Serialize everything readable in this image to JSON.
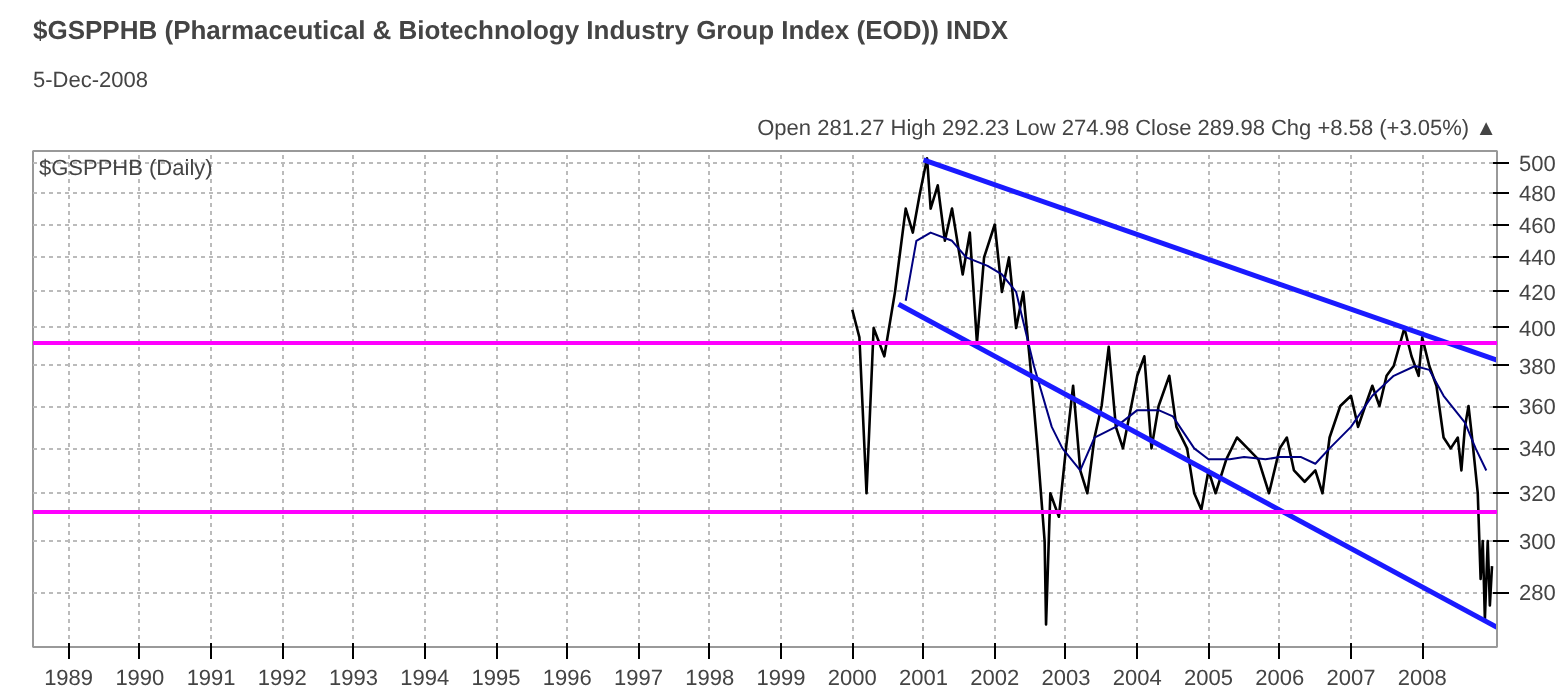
{
  "chart_data": {
    "type": "line",
    "title": "$GSPPHB (Pharmaceutical & Biotechnology Industry Group Index (EOD)) INDX",
    "subtitle": "5-Dec-2008",
    "annotations": [
      "Open 281.27 High 292.23 Low 274.98 Close 289.98 Chg +8.58 (+3.05%) ▲",
      "$GSPPHB (Daily)"
    ],
    "log": "y",
    "grid": true,
    "xlim": [
      1988.5,
      2009.05
    ],
    "ylim": [
      260,
      508
    ],
    "xticks": [
      1989,
      1990,
      1991,
      1992,
      1993,
      1994,
      1995,
      1996,
      1997,
      1998,
      1999,
      2000,
      2001,
      2002,
      2003,
      2004,
      2005,
      2006,
      2007,
      2008
    ],
    "yticks": [
      280,
      300,
      320,
      340,
      360,
      380,
      400,
      420,
      440,
      460,
      480,
      500
    ],
    "ref_lines": [
      {
        "axis": "y",
        "value": 392,
        "color": "#ff00ff"
      },
      {
        "axis": "y",
        "value": 312,
        "color": "#ff00ff"
      }
    ],
    "series": [
      {
        "color": "#000000",
        "x": [
          2000.0,
          2000.1,
          2000.2,
          2000.3,
          2000.45,
          2000.6,
          2000.75,
          2000.85,
          2000.95,
          2001.05,
          2001.1,
          2001.2,
          2001.3,
          2001.4,
          2001.55,
          2001.65,
          2001.75,
          2001.85,
          2002.0,
          2002.1,
          2002.2,
          2002.3,
          2002.4,
          2002.5,
          2002.6,
          2002.7,
          2002.72,
          2002.78,
          2002.9,
          2003.0,
          2003.1,
          2003.2,
          2003.3,
          2003.4,
          2003.5,
          2003.6,
          2003.7,
          2003.8,
          2004.0,
          2004.1,
          2004.2,
          2004.3,
          2004.45,
          2004.55,
          2004.7,
          2004.8,
          2004.9,
          2005.0,
          2005.1,
          2005.25,
          2005.4,
          2005.55,
          2005.7,
          2005.85,
          2006.0,
          2006.1,
          2006.2,
          2006.35,
          2006.5,
          2006.6,
          2006.7,
          2006.85,
          2007.0,
          2007.1,
          2007.2,
          2007.3,
          2007.4,
          2007.5,
          2007.6,
          2007.75,
          2007.85,
          2007.95,
          2008.0,
          2008.1,
          2008.2,
          2008.3,
          2008.4,
          2008.5,
          2008.55,
          2008.6,
          2008.65,
          2008.7,
          2008.78,
          2008.82,
          2008.85,
          2008.88,
          2008.92,
          2008.95,
          2008.98
        ],
        "values": [
          410,
          395,
          320,
          400,
          385,
          420,
          470,
          455,
          480,
          503,
          470,
          485,
          450,
          470,
          430,
          455,
          392,
          440,
          460,
          420,
          440,
          400,
          420,
          380,
          340,
          300,
          268,
          320,
          310,
          340,
          370,
          330,
          320,
          345,
          360,
          390,
          350,
          340,
          375,
          385,
          340,
          360,
          375,
          350,
          340,
          320,
          313,
          330,
          320,
          335,
          345,
          340,
          335,
          320,
          340,
          345,
          330,
          325,
          330,
          320,
          345,
          360,
          365,
          350,
          360,
          370,
          360,
          375,
          380,
          400,
          385,
          375,
          395,
          380,
          370,
          345,
          340,
          345,
          330,
          350,
          360,
          345,
          320,
          285,
          300,
          270,
          300,
          275,
          290
        ]
      },
      {
        "color": "#000080",
        "x": [
          2000.75,
          2000.9,
          2001.1,
          2001.4,
          2001.6,
          2001.9,
          2002.1,
          2002.3,
          2002.55,
          2002.8,
          2002.95,
          2003.2,
          2003.4,
          2003.7,
          2004.0,
          2004.3,
          2004.5,
          2004.8,
          2005.0,
          2005.3,
          2005.5,
          2005.8,
          2006.0,
          2006.3,
          2006.5,
          2006.7,
          2007.0,
          2007.3,
          2007.6,
          2007.9,
          2008.1,
          2008.3,
          2008.6,
          2008.75,
          2008.9
        ],
        "values": [
          415,
          450,
          455,
          450,
          440,
          435,
          430,
          420,
          380,
          350,
          340,
          330,
          345,
          350,
          358,
          358,
          355,
          340,
          335,
          335,
          336,
          335,
          336,
          336,
          333,
          340,
          350,
          365,
          375,
          380,
          378,
          365,
          352,
          340,
          330
        ]
      },
      {
        "color": "#1a1aff",
        "x": [
          2001.0,
          2009.05
        ],
        "values": [
          502,
          383
        ]
      },
      {
        "color": "#1a1aff",
        "x": [
          2000.65,
          2009.05
        ],
        "values": [
          413,
          267
        ]
      }
    ]
  }
}
